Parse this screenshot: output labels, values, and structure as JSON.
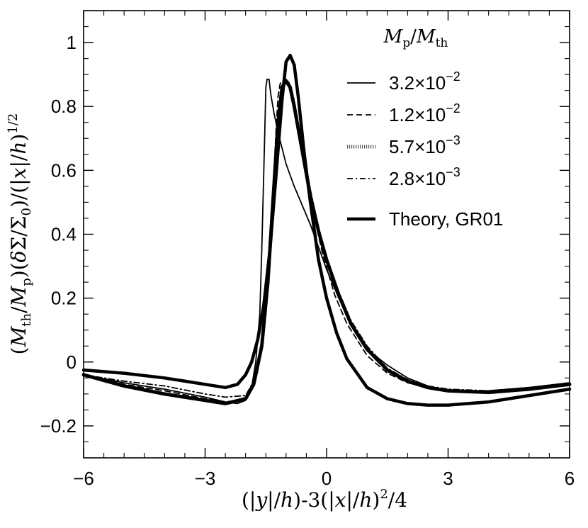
{
  "chart_data": {
    "type": "line",
    "title": "",
    "xlabel": {
      "pre": "(|",
      "v1": "y",
      "mid1": "|/",
      "h1": "h",
      "mid2": ")-3(|",
      "v2": "x",
      "mid3": "|/",
      "h2": "h",
      "mid4": ")",
      "sup": "2",
      "post": "/4"
    },
    "ylabel": {
      "p1": "(",
      "M1": "M",
      "sub1": "th",
      "slash1": "/",
      "M2": "M",
      "sub2": "p",
      "p2": ")(",
      "delta": "δ",
      "Sig1": "Σ",
      "slash2": "/",
      "Sig2": "Σ",
      "sub3": "0",
      "p3": ")/(|",
      "x": "x",
      "slash3": "|/",
      "h": "h",
      "p4": ")",
      "sup": "1/2"
    },
    "xlim": [
      -6,
      6
    ],
    "ylim": [
      -0.3,
      1.1
    ],
    "x_ticks": [
      -6,
      -3,
      0,
      3,
      6
    ],
    "x_tick_labels": [
      "−6",
      "−3",
      "0",
      "3",
      "6"
    ],
    "y_ticks": [
      -0.2,
      0,
      0.2,
      0.4,
      0.6,
      0.8,
      1
    ],
    "y_tick_labels": [
      "−0.2",
      "0",
      "0.2",
      "0.4",
      "0.6",
      "0.8",
      "1"
    ],
    "legend_title": {
      "M1": "M",
      "sub1": "p",
      "slash": "/",
      "M2": "M",
      "sub2": "th"
    },
    "legend_position": "top-right",
    "series": [
      {
        "name": "3.2×10⁻²",
        "label_base": "3.2×10",
        "label_exp": "−2",
        "style": "solid",
        "width": 1.8,
        "x": [
          -6,
          -5,
          -4,
          -3,
          -2.5,
          -2.2,
          -2.0,
          -1.85,
          -1.75,
          -1.65,
          -1.6,
          -1.55,
          -1.5,
          -1.47,
          -1.42,
          -1.38,
          -1.3,
          -1.2,
          -1.1,
          -1.0,
          -0.8,
          -0.6,
          -0.4,
          -0.2,
          0,
          0.3,
          0.5,
          0.8,
          1.0,
          1.5,
          2.0,
          2.5,
          3.0,
          4.0,
          5.0,
          6.0
        ],
        "y": [
          -0.04,
          -0.065,
          -0.085,
          -0.11,
          -0.125,
          -0.13,
          -0.12,
          -0.08,
          0.0,
          0.15,
          0.35,
          0.6,
          0.86,
          0.885,
          0.885,
          0.84,
          0.78,
          0.72,
          0.67,
          0.62,
          0.55,
          0.49,
          0.43,
          0.36,
          0.29,
          0.2,
          0.15,
          0.08,
          0.04,
          -0.01,
          -0.05,
          -0.075,
          -0.09,
          -0.09,
          -0.08,
          -0.065
        ]
      },
      {
        "name": "1.2×10⁻²",
        "label_base": "1.2×10",
        "label_exp": "−2",
        "style": "dashed",
        "width": 1.8,
        "x": [
          -6,
          -5,
          -4,
          -3,
          -2.5,
          -2.1,
          -1.9,
          -1.7,
          -1.5,
          -1.35,
          -1.25,
          -1.2,
          -1.15,
          -1.1,
          -1.05,
          -1.0,
          -0.95,
          -0.85,
          -0.7,
          -0.5,
          -0.3,
          -0.1,
          0.2,
          0.5,
          1.0,
          1.5,
          2.0,
          2.5,
          3.0,
          4.0,
          5.0,
          6.0
        ],
        "y": [
          -0.04,
          -0.07,
          -0.09,
          -0.115,
          -0.125,
          -0.12,
          -0.1,
          -0.03,
          0.15,
          0.45,
          0.72,
          0.83,
          0.87,
          0.88,
          0.875,
          0.88,
          0.87,
          0.82,
          0.72,
          0.58,
          0.45,
          0.34,
          0.21,
          0.12,
          0.02,
          -0.035,
          -0.065,
          -0.08,
          -0.09,
          -0.09,
          -0.08,
          -0.065
        ]
      },
      {
        "name": "5.7×10⁻³",
        "label_base": "5.7×10",
        "label_exp": "−3",
        "style": "dotted",
        "width": 5,
        "x": [
          -6,
          -5,
          -4,
          -3,
          -2.5,
          -2.0,
          -1.8,
          -1.6,
          -1.45,
          -1.3,
          -1.2,
          -1.1,
          -1.0,
          -0.9,
          -0.8,
          -0.6,
          -0.4,
          -0.2,
          0,
          0.3,
          0.6,
          1.0,
          1.5,
          2.0,
          2.5,
          3.0,
          4.0,
          5.0,
          6.0
        ],
        "y": [
          -0.04,
          -0.075,
          -0.1,
          -0.12,
          -0.13,
          -0.115,
          -0.07,
          0.05,
          0.25,
          0.55,
          0.75,
          0.86,
          0.88,
          0.86,
          0.8,
          0.66,
          0.52,
          0.41,
          0.32,
          0.21,
          0.12,
          0.04,
          -0.025,
          -0.06,
          -0.08,
          -0.09,
          -0.095,
          -0.085,
          -0.07
        ]
      },
      {
        "name": "2.8×10⁻³",
        "label_base": "2.8×10",
        "label_exp": "−3",
        "style": "dashdot",
        "width": 1.8,
        "x": [
          -6,
          -5,
          -4,
          -3,
          -2.5,
          -2.0,
          -1.8,
          -1.6,
          -1.45,
          -1.3,
          -1.2,
          -1.1,
          -1.0,
          -0.9,
          -0.8,
          -0.6,
          -0.4,
          -0.2,
          0,
          0.3,
          0.6,
          1.0,
          1.5,
          2.0,
          2.5,
          3.0,
          4.0,
          5.0,
          6.0
        ],
        "y": [
          -0.04,
          -0.06,
          -0.075,
          -0.1,
          -0.11,
          -0.105,
          -0.06,
          0.06,
          0.3,
          0.6,
          0.78,
          0.87,
          0.885,
          0.87,
          0.82,
          0.68,
          0.54,
          0.42,
          0.33,
          0.22,
          0.13,
          0.05,
          -0.02,
          -0.055,
          -0.075,
          -0.085,
          -0.09,
          -0.08,
          -0.065
        ]
      },
      {
        "name": "Theory, GR01",
        "label_base": "Theory, GR01",
        "label_exp": "",
        "style": "solid",
        "width": 4.5,
        "x": [
          -6,
          -5,
          -4,
          -3,
          -2.5,
          -2.2,
          -2.0,
          -1.85,
          -1.7,
          -1.55,
          -1.4,
          -1.25,
          -1.1,
          -1.0,
          -0.9,
          -0.8,
          -0.7,
          -0.55,
          -0.4,
          -0.2,
          0,
          0.25,
          0.5,
          1.0,
          1.5,
          2.0,
          2.5,
          3.0,
          4.0,
          5.0,
          6.0
        ],
        "y": [
          -0.025,
          -0.035,
          -0.05,
          -0.07,
          -0.08,
          -0.07,
          -0.04,
          0.0,
          0.07,
          0.18,
          0.35,
          0.58,
          0.82,
          0.94,
          0.96,
          0.93,
          0.83,
          0.65,
          0.5,
          0.32,
          0.2,
          0.09,
          0.01,
          -0.08,
          -0.115,
          -0.13,
          -0.135,
          -0.135,
          -0.125,
          -0.105,
          -0.085
        ]
      }
    ]
  }
}
